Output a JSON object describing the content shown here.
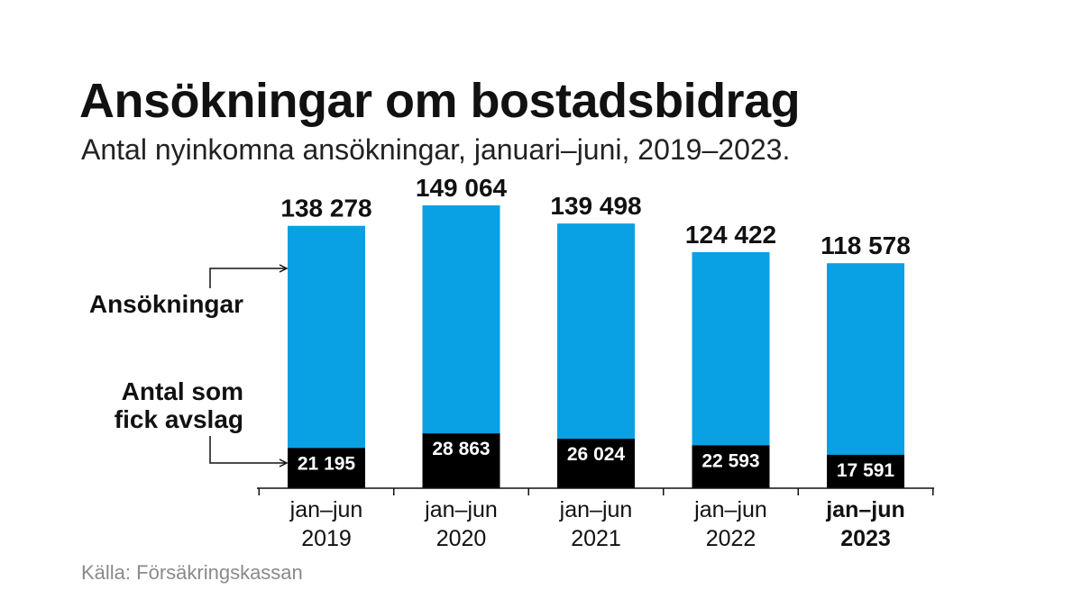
{
  "header": {
    "title": "Ansökningar om bostadsbidrag",
    "subtitle": "Antal nyinkomna ansökningar, januari–juni, 2019–2023."
  },
  "footer": {
    "source": "Källa: Försäkringskassan"
  },
  "legend": {
    "applications_label": "Ansökningar",
    "rejections_label_line1": "Antal som",
    "rejections_label_line2": "fick avslag"
  },
  "colors": {
    "applications": "#0aa0e4",
    "rejections": "#000000",
    "text": "#111111",
    "source": "#8a8a8a"
  },
  "chart_data": {
    "type": "bar",
    "stacked": false,
    "overlay": true,
    "categories": [
      "jan–jun\n2019",
      "jan–jun\n2020",
      "jan–jun\n2021",
      "jan–jun\n2022",
      "jan–jun\n2023"
    ],
    "category_line1": [
      "jan–jun",
      "jan–jun",
      "jan–jun",
      "jan–jun",
      "jan–jun"
    ],
    "category_line2": [
      "2019",
      "2020",
      "2021",
      "2022",
      "2023"
    ],
    "highlighted_category": 4,
    "series": [
      {
        "name": "Ansökningar",
        "values": [
          138278,
          149064,
          139498,
          124422,
          118578
        ],
        "labels": [
          "138 278",
          "149 064",
          "139 498",
          "124 422",
          "118 578"
        ],
        "color": "#0aa0e4"
      },
      {
        "name": "Antal som fick avslag",
        "values": [
          21195,
          28863,
          26024,
          22593,
          17591
        ],
        "labels": [
          "21 195",
          "28 863",
          "26 024",
          "22 593",
          "17 591"
        ],
        "color": "#000000"
      }
    ],
    "title": "Ansökningar om bostadsbidrag",
    "subtitle": "Antal nyinkomna ansökningar, januari–juni, 2019–2023.",
    "xlabel": "",
    "ylabel": "",
    "ylim": [
      0,
      149064
    ],
    "grid": false,
    "legend": "left"
  }
}
